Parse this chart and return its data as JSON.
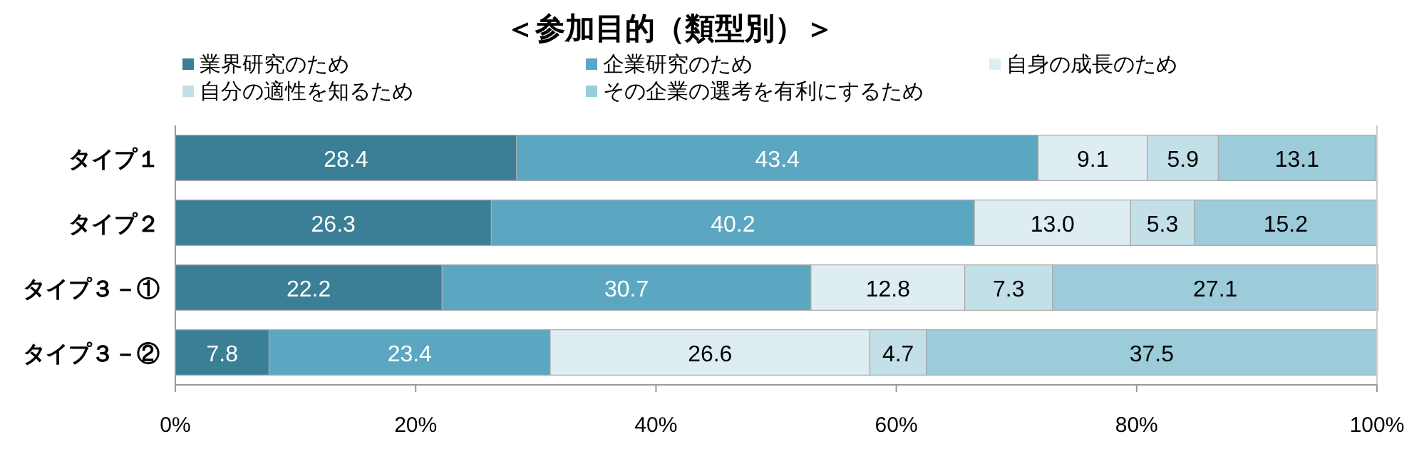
{
  "chart_data": {
    "type": "bar",
    "orientation": "horizontal",
    "stacked": true,
    "title": "＜参加目的（類型別）＞",
    "categories": [
      "タイプ１",
      "タイプ２",
      "タイプ３－①",
      "タイプ３－②"
    ],
    "series": [
      {
        "name": "業界研究のため",
        "color": "#3a7f96",
        "values": [
          28.4,
          26.3,
          22.2,
          7.8
        ],
        "value_labels": [
          "28.4",
          "26.3",
          "22.2",
          "7.8"
        ]
      },
      {
        "name": "企業研究のため",
        "color": "#5ba7c1",
        "values": [
          43.4,
          40.2,
          30.7,
          23.4
        ],
        "value_labels": [
          "43.4",
          "40.2",
          "30.7",
          "23.4"
        ]
      },
      {
        "name": "自身の成長のため",
        "color": "#deedf2",
        "values": [
          9.1,
          13.0,
          12.8,
          26.6
        ],
        "value_labels": [
          "9.1",
          "13.0",
          "12.8",
          "26.6"
        ]
      },
      {
        "name": "自分の適性を知るため",
        "color": "#c3dfe8",
        "values": [
          5.9,
          5.3,
          7.3,
          4.7
        ],
        "value_labels": [
          "5.9",
          "5.3",
          "7.3",
          "4.7"
        ]
      },
      {
        "name": "その企業の選考を有利にするため",
        "color": "#9ccbda",
        "values": [
          13.1,
          15.2,
          27.1,
          37.5
        ],
        "value_labels": [
          "13.1",
          "15.2",
          "27.1",
          "37.5"
        ]
      }
    ],
    "xlim": [
      0,
      100
    ],
    "xticks": [
      {
        "value": 0,
        "label": "0%"
      },
      {
        "value": 20,
        "label": "20%"
      },
      {
        "value": 40,
        "label": "40%"
      },
      {
        "value": 60,
        "label": "60%"
      },
      {
        "value": 80,
        "label": "80%"
      },
      {
        "value": 100,
        "label": "100%"
      }
    ],
    "legend": "top",
    "grid": false
  }
}
